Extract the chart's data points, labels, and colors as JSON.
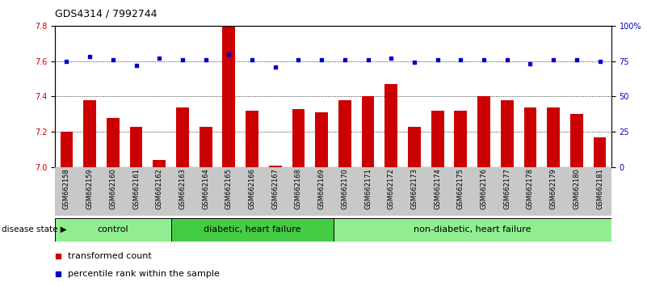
{
  "title": "GDS4314 / 7992744",
  "samples": [
    "GSM662158",
    "GSM662159",
    "GSM662160",
    "GSM662161",
    "GSM662162",
    "GSM662163",
    "GSM662164",
    "GSM662165",
    "GSM662166",
    "GSM662167",
    "GSM662168",
    "GSM662169",
    "GSM662170",
    "GSM662171",
    "GSM662172",
    "GSM662173",
    "GSM662174",
    "GSM662175",
    "GSM662176",
    "GSM662177",
    "GSM662178",
    "GSM662179",
    "GSM662180",
    "GSM662181"
  ],
  "red_values": [
    7.2,
    7.38,
    7.28,
    7.23,
    7.04,
    7.34,
    7.23,
    7.8,
    7.32,
    7.01,
    7.33,
    7.31,
    7.38,
    7.4,
    7.47,
    7.23,
    7.32,
    7.32,
    7.4,
    7.38,
    7.34,
    7.34,
    7.3,
    7.17
  ],
  "blue_values": [
    75,
    78,
    76,
    72,
    77,
    76,
    76,
    80,
    76,
    71,
    76,
    76,
    76,
    76,
    77,
    74,
    76,
    76,
    76,
    76,
    73,
    76,
    76,
    75
  ],
  "red_color": "#cc0000",
  "blue_color": "#0000cc",
  "ylim_left": [
    7.0,
    7.8
  ],
  "ylim_right": [
    0,
    100
  ],
  "yticks_left": [
    7.0,
    7.2,
    7.4,
    7.6,
    7.8
  ],
  "yticks_right": [
    0,
    25,
    50,
    75,
    100
  ],
  "ytick_labels_right": [
    "0",
    "25",
    "50",
    "75",
    "100%"
  ],
  "group_control_color": "#90ee90",
  "group_diabetic_color": "#44cc44",
  "group_nondiabetic_color": "#90ee90",
  "legend_red": "transformed count",
  "legend_blue": "percentile rank within the sample",
  "disease_state_label": "disease state",
  "bar_width": 0.55,
  "background_color": "#ffffff",
  "xtick_bg_color": "#c8c8c8",
  "tick_label_fontsize": 7,
  "group_label_fontsize": 8
}
